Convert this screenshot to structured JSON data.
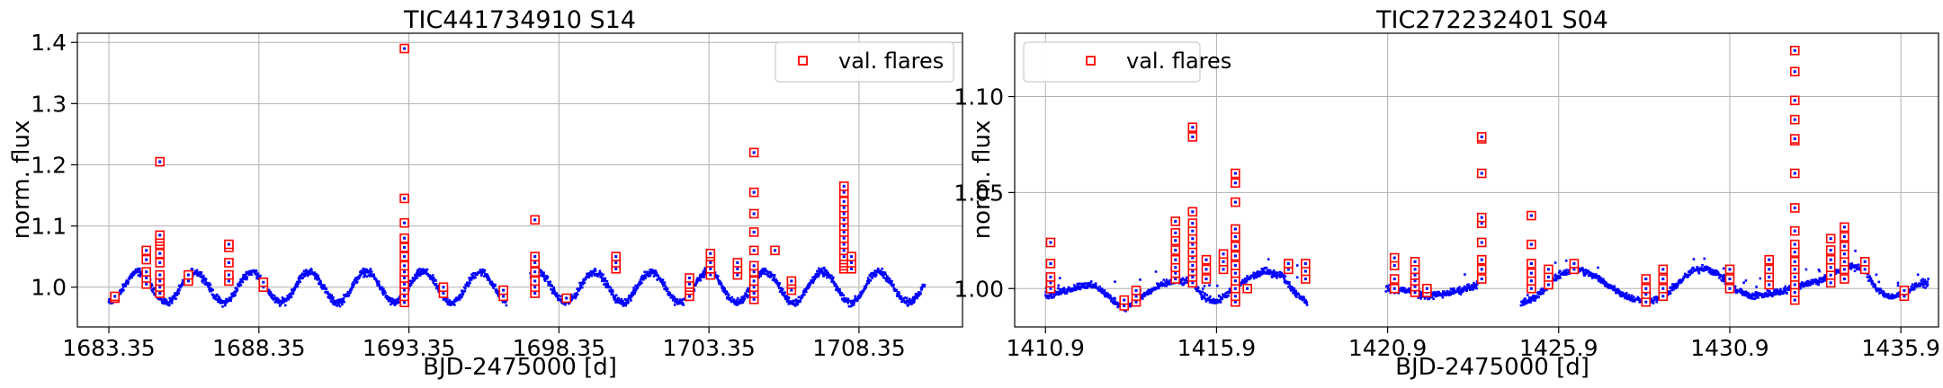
{
  "chart_data": [
    {
      "type": "scatter",
      "title": "TIC441734910 S14",
      "xlabel": "BJD-2475000 [d]",
      "ylabel": "norm. flux",
      "xlim": [
        1682.3,
        1711.8
      ],
      "ylim": [
        0.935,
        1.415
      ],
      "xticks": [
        1683.35,
        1688.35,
        1693.35,
        1698.35,
        1703.35,
        1708.35
      ],
      "xtick_labels": [
        "1683.35",
        "1688.35",
        "1693.35",
        "1698.35",
        "1703.35",
        "1708.35"
      ],
      "yticks": [
        1.0,
        1.1,
        1.2,
        1.3,
        1.4
      ],
      "ytick_labels": [
        "1.0",
        "1.1",
        "1.2",
        "1.3",
        "1.4"
      ],
      "grid": true,
      "legend": {
        "position": "top-right",
        "entries": [
          "val. flares"
        ]
      },
      "series": [
        {
          "kind": "light_curve",
          "color": "#0000ff",
          "segments": [
            [
              1683.35,
              1696.6
            ],
            [
              1697.4,
              1710.55
            ]
          ],
          "model": {
            "baseline": 1.0,
            "amplitude": 0.025,
            "period": 1.9,
            "phase": 1683.85,
            "noise": 0.005
          }
        },
        {
          "name": "val. flares",
          "kind": "flare_markers",
          "color": "#ff0000",
          "events": [
            {
              "x": 1683.55,
              "ys": [
                0.982,
                0.985
              ]
            },
            {
              "x": 1684.6,
              "ys": [
                1.005,
                1.015,
                1.025,
                1.045,
                1.06
              ]
            },
            {
              "x": 1685.05,
              "ys": [
                0.99,
                1.0,
                1.01,
                1.02,
                1.04,
                1.055,
                1.07,
                1.075,
                1.08,
                1.085,
                1.205
              ]
            },
            {
              "x": 1686.0,
              "ys": [
                1.01,
                1.02
              ]
            },
            {
              "x": 1687.35,
              "ys": [
                1.01,
                1.02,
                1.04,
                1.065,
                1.07
              ]
            },
            {
              "x": 1688.5,
              "ys": [
                1.0,
                1.008
              ]
            },
            {
              "x": 1693.2,
              "ys": [
                0.975,
                0.985,
                0.995,
                1.005,
                1.015,
                1.025,
                1.035,
                1.05,
                1.065,
                1.08,
                1.105,
                1.145,
                1.39
              ]
            },
            {
              "x": 1694.5,
              "ys": [
                0.99,
                1.0
              ]
            },
            {
              "x": 1696.5,
              "ys": [
                0.985,
                0.995
              ]
            },
            {
              "x": 1697.55,
              "ys": [
                0.99,
                1.0,
                1.01,
                1.025,
                1.04,
                1.05,
                1.11
              ]
            },
            {
              "x": 1698.6,
              "ys": [
                0.982
              ]
            },
            {
              "x": 1700.25,
              "ys": [
                1.03,
                1.04,
                1.05
              ]
            },
            {
              "x": 1702.7,
              "ys": [
                0.985,
                0.995,
                1.0,
                1.005,
                1.015
              ]
            },
            {
              "x": 1703.4,
              "ys": [
                1.02,
                1.03,
                1.04,
                1.05,
                1.055
              ]
            },
            {
              "x": 1704.3,
              "ys": [
                1.02,
                1.03,
                1.04
              ]
            },
            {
              "x": 1704.85,
              "ys": [
                0.98,
                0.99,
                1.0,
                1.01,
                1.025,
                1.035,
                1.06,
                1.09,
                1.12,
                1.155,
                1.22
              ]
            },
            {
              "x": 1705.55,
              "ys": [
                1.06
              ]
            },
            {
              "x": 1706.1,
              "ys": [
                0.995,
                1.005,
                1.01
              ]
            },
            {
              "x": 1707.85,
              "ys": [
                1.03,
                1.035,
                1.04,
                1.045,
                1.05,
                1.06,
                1.07,
                1.08,
                1.09,
                1.1,
                1.11,
                1.12,
                1.13,
                1.14,
                1.155,
                1.165
              ]
            },
            {
              "x": 1708.1,
              "ys": [
                1.03,
                1.04,
                1.05
              ]
            }
          ]
        }
      ]
    },
    {
      "type": "scatter",
      "title": "TIC272232401 S04",
      "xlabel": "BJD-2475000 [d]",
      "ylabel": "norm. flux",
      "xlim": [
        1410.0,
        1437.0
      ],
      "ylim": [
        0.98,
        1.133
      ],
      "xticks": [
        1410.9,
        1415.9,
        1420.9,
        1425.9,
        1430.9,
        1435.9
      ],
      "xtick_labels": [
        "1410.9",
        "1415.9",
        "1420.9",
        "1425.9",
        "1430.9",
        "1435.9"
      ],
      "yticks": [
        1.0,
        1.05,
        1.1
      ],
      "ytick_labels": [
        "1.00",
        "1.05",
        "1.10"
      ],
      "grid": true,
      "legend": {
        "position": "top-left",
        "entries": [
          "val. flares"
        ]
      },
      "series": [
        {
          "kind": "light_curve",
          "color": "#0000ff",
          "points": [
            [
              1410.9,
              0.996
            ],
            [
              1411.5,
              0.999
            ],
            [
              1412.0,
              1.002
            ],
            [
              1412.4,
              1.001
            ],
            [
              1412.8,
              0.995
            ],
            [
              1413.2,
              0.99
            ],
            [
              1413.5,
              0.993
            ],
            [
              1413.9,
              0.998
            ],
            [
              1414.3,
              1.002
            ],
            [
              1414.7,
              1.004
            ],
            [
              1415.2,
              1.003
            ],
            [
              1415.5,
              0.996
            ],
            [
              1415.9,
              0.993
            ],
            [
              1416.4,
              1.0
            ],
            [
              1416.9,
              1.006
            ],
            [
              1417.3,
              1.009
            ],
            [
              1417.8,
              1.007
            ],
            [
              1418.2,
              0.998
            ],
            [
              1418.55,
              0.993
            ],
            null,
            [
              1420.85,
              1.0
            ],
            [
              1421.5,
              0.999
            ],
            [
              1422.0,
              0.996
            ],
            [
              1422.5,
              0.997
            ],
            [
              1423.0,
              0.999
            ],
            [
              1423.5,
              1.002
            ],
            [
              1423.65,
              1.004
            ],
            null,
            [
              1424.8,
              0.992
            ],
            [
              1425.2,
              0.995
            ],
            [
              1425.6,
              1.002
            ],
            [
              1426.0,
              1.008
            ],
            [
              1426.5,
              1.01
            ],
            [
              1427.0,
              1.006
            ],
            [
              1427.5,
              1.0
            ],
            [
              1428.0,
              0.995
            ],
            [
              1428.5,
              0.993
            ],
            [
              1429.0,
              0.996
            ],
            [
              1429.4,
              1.003
            ],
            [
              1429.8,
              1.009
            ],
            [
              1430.2,
              1.011
            ],
            [
              1430.6,
              1.007
            ],
            [
              1431.0,
              1.0
            ],
            [
              1431.5,
              0.996
            ],
            [
              1432.0,
              0.997
            ],
            [
              1432.5,
              0.999
            ],
            [
              1433.0,
              1.002
            ],
            [
              1433.5,
              1.004
            ],
            [
              1434.0,
              1.008
            ],
            [
              1434.4,
              1.012
            ],
            [
              1434.8,
              1.01
            ],
            [
              1435.2,
              1.0
            ],
            [
              1435.6,
              0.995
            ],
            [
              1436.0,
              0.998
            ],
            [
              1436.4,
              1.002
            ],
            [
              1436.7,
              1.003
            ]
          ],
          "noise": 0.0015
        },
        {
          "name": "val. flares",
          "kind": "flare_markers",
          "color": "#ff0000",
          "events": [
            {
              "x": 1411.05,
              "ys": [
                1.0,
                1.003,
                1.006,
                1.013,
                1.024
              ]
            },
            {
              "x": 1413.2,
              "ys": [
                0.991,
                0.994
              ]
            },
            {
              "x": 1413.55,
              "ys": [
                0.993,
                0.996,
                0.999
              ]
            },
            {
              "x": 1414.7,
              "ys": [
                1.005,
                1.008,
                1.011,
                1.015,
                1.02,
                1.025,
                1.029,
                1.035
              ]
            },
            {
              "x": 1415.2,
              "ys": [
                1.003,
                1.006,
                1.009,
                1.012,
                1.016,
                1.019,
                1.023,
                1.026,
                1.03,
                1.034,
                1.04,
                1.079,
                1.084
              ]
            },
            {
              "x": 1415.6,
              "ys": [
                1.005,
                1.01,
                1.015
              ]
            },
            {
              "x": 1416.1,
              "ys": [
                1.01,
                1.014,
                1.018
              ]
            },
            {
              "x": 1416.45,
              "ys": [
                0.993,
                0.996,
                1.0,
                1.004,
                1.008,
                1.012,
                1.017,
                1.022,
                1.027,
                1.031,
                1.045,
                1.055,
                1.06
              ]
            },
            {
              "x": 1416.8,
              "ys": [
                1.0
              ]
            },
            {
              "x": 1418.0,
              "ys": [
                1.01,
                1.013
              ]
            },
            {
              "x": 1418.5,
              "ys": [
                1.005,
                1.009,
                1.013
              ]
            },
            {
              "x": 1421.1,
              "ys": [
                1.0,
                1.005,
                1.012,
                1.016
              ]
            },
            {
              "x": 1421.7,
              "ys": [
                0.998,
                1.001,
                1.004,
                1.007,
                1.01,
                1.014
              ]
            },
            {
              "x": 1422.05,
              "ys": [
                0.998,
                1.0
              ]
            },
            {
              "x": 1423.65,
              "ys": [
                1.005,
                1.01,
                1.015,
                1.024,
                1.034,
                1.037,
                1.06,
                1.078,
                1.079
              ]
            },
            {
              "x": 1425.1,
              "ys": [
                1.0,
                1.004,
                1.008,
                1.013,
                1.023,
                1.038
              ]
            },
            {
              "x": 1425.6,
              "ys": [
                1.002,
                1.006,
                1.01
              ]
            },
            {
              "x": 1426.35,
              "ys": [
                1.01,
                1.013
              ]
            },
            {
              "x": 1428.45,
              "ys": [
                0.993,
                0.997,
                1.0,
                1.005
              ]
            },
            {
              "x": 1428.95,
              "ys": [
                0.996,
                1.0,
                1.005,
                1.01
              ]
            },
            {
              "x": 1430.9,
              "ys": [
                1.0,
                1.005,
                1.01
              ]
            },
            {
              "x": 1432.05,
              "ys": [
                1.002,
                1.006,
                1.01,
                1.015
              ]
            },
            {
              "x": 1432.8,
              "ys": [
                0.994,
                0.998,
                1.002,
                1.006,
                1.01,
                1.014,
                1.019,
                1.023,
                1.03,
                1.042,
                1.06,
                1.077,
                1.078,
                1.088,
                1.098,
                1.113,
                1.124
              ]
            },
            {
              "x": 1433.85,
              "ys": [
                1.003,
                1.007,
                1.011,
                1.015,
                1.02,
                1.026
              ]
            },
            {
              "x": 1434.25,
              "ys": [
                1.005,
                1.01,
                1.014,
                1.018,
                1.022,
                1.027,
                1.032
              ]
            },
            {
              "x": 1434.85,
              "ys": [
                1.01,
                1.014
              ]
            },
            {
              "x": 1436.0,
              "ys": [
                0.996,
                0.999
              ]
            }
          ]
        }
      ]
    }
  ]
}
